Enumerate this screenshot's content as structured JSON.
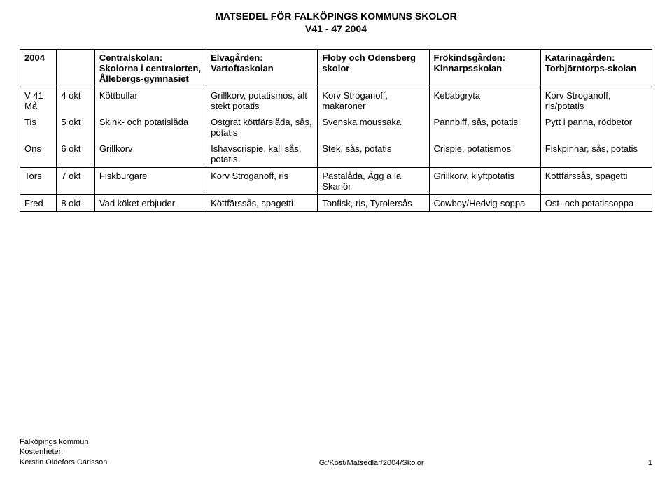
{
  "header": {
    "line1": "MATSEDEL FÖR FALKÖPINGS KOMMUNS SKOLOR",
    "line2": "V41 - 47  2004"
  },
  "columns": {
    "year": "2004",
    "c1_u": "Centralskolan:",
    "c1_rest": "Skolorna i centralorten, Ållebergs-gymnasiet",
    "c2_u": "Elvagården:",
    "c2_rest": "Vartoftaskolan",
    "c3": "Floby och Odensberg skolor",
    "c4_u": "Frökindsgården:",
    "c4_rest": "Kinnarpsskolan",
    "c5_u": "Katarinagården:",
    "c5_rest": "Torbjörntorps-skolan"
  },
  "rows": [
    {
      "wk": "V 41 Må",
      "date": "4 okt",
      "c1": "Köttbullar",
      "c2": "Grillkorv, potatismos, alt stekt potatis",
      "c3": "Korv Stroganoff, makaroner",
      "c4": "Kebabgryta",
      "c5": "Korv Stroganoff, ris/potatis"
    },
    {
      "wk": "Tis",
      "date": "5 okt",
      "c1": "Skink- och potatislåda",
      "c2": "Ostgrat köttfärslåda, sås, potatis",
      "c3": "Svenska moussaka",
      "c4": "Pannbiff, sås, potatis",
      "c5": "Pytt i panna, rödbetor"
    },
    {
      "wk": "Ons",
      "date": "6 okt",
      "c1": "Grillkorv",
      "c2": "Ishavscrispie, kall sås, potatis",
      "c3": "Stek, sås, potatis",
      "c4": "Crispie, potatismos",
      "c5": "Fiskpinnar, sås, potatis"
    },
    {
      "wk": "Tors",
      "date": "7 okt",
      "c1": "Fiskburgare",
      "c2": "Korv Stroganoff, ris",
      "c3": "Pastalåda, Ägg a la Skanör",
      "c4": "Grillkorv, klyftpotatis",
      "c5": "Köttfärssås, spagetti"
    },
    {
      "wk": "Fred",
      "date": "8 okt",
      "c1": "Vad köket erbjuder",
      "c2": "Köttfärssås, spagetti",
      "c3": "Tonfisk, ris, Tyrolersås",
      "c4": "Cowboy/Hedvig-soppa",
      "c5": "Ost- och potatissoppa"
    }
  ],
  "footer": {
    "org1": "Falköpings kommun",
    "org2": "Kostenheten",
    "author": "Kerstin Oldefors Carlsson",
    "path": "G:/Kost/Matsedlar/2004/Skolor",
    "page": "1"
  }
}
